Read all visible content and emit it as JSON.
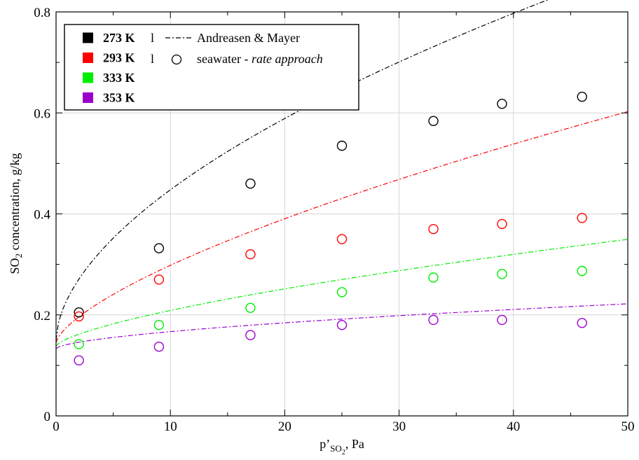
{
  "chart_data": {
    "type": "scatter",
    "xlabel": {
      "main": "p’",
      "sub": "SO",
      "subsub": "2",
      "tail": ", Pa"
    },
    "ylabel": {
      "pre": "SO",
      "sub": "2",
      "post": " concentration, g/kg"
    },
    "xlim": [
      0,
      50
    ],
    "ylim": [
      0,
      0.8
    ],
    "x_ticks": [
      0,
      10,
      20,
      30,
      40,
      50
    ],
    "x_tick_labels": [
      "0",
      "10",
      "20",
      "30",
      "40",
      "50"
    ],
    "y_ticks": [
      0,
      0.2,
      0.4,
      0.6,
      0.8
    ],
    "y_tick_labels": [
      "0",
      "0.2",
      "0.4",
      "0.6",
      "0.8"
    ],
    "grid": true,
    "legend": {
      "placement": "top-left",
      "temperatures": [
        {
          "label": "273 K",
          "color": "#000000"
        },
        {
          "label": "293 K",
          "color": "#ff0000"
        },
        {
          "label": "333 K",
          "color": "#00ee00"
        },
        {
          "label": "353 K",
          "color": "#9a00cc"
        }
      ],
      "line_entry": "Andreasen & Mayer",
      "marker_entry_prefix": "seawater - ",
      "marker_entry_italic": "rate approach",
      "separator": "l"
    },
    "series": [
      {
        "temperature": "273 K",
        "color": "#000000",
        "x": [
          2,
          9,
          17,
          25,
          33,
          39,
          46
        ],
        "y": [
          0.205,
          0.332,
          0.46,
          0.535,
          0.584,
          0.618,
          0.632
        ],
        "curve": {
          "a": 0.15,
          "b": 0.082,
          "p": 0.56
        }
      },
      {
        "temperature": "293 K",
        "color": "#ff0000",
        "x": [
          2,
          9,
          17,
          25,
          33,
          39,
          46
        ],
        "y": [
          0.197,
          0.27,
          0.32,
          0.35,
          0.37,
          0.38,
          0.392
        ],
        "curve": {
          "a": 0.145,
          "b": 0.032,
          "p": 0.68
        }
      },
      {
        "temperature": "333 K",
        "color": "#00ee00",
        "x": [
          2,
          9,
          17,
          25,
          33,
          39,
          46
        ],
        "y": [
          0.142,
          0.18,
          0.214,
          0.245,
          0.274,
          0.281,
          0.287
        ],
        "curve": {
          "a": 0.138,
          "b": 0.0148,
          "p": 0.68
        }
      },
      {
        "temperature": "353 K",
        "color": "#9a00cc",
        "x": [
          2,
          9,
          17,
          25,
          33,
          39,
          46
        ],
        "y": [
          0.11,
          0.137,
          0.16,
          0.18,
          0.19,
          0.19,
          0.184
        ],
        "curve": {
          "a": 0.133,
          "b": 0.0085,
          "p": 0.6
        }
      }
    ]
  }
}
